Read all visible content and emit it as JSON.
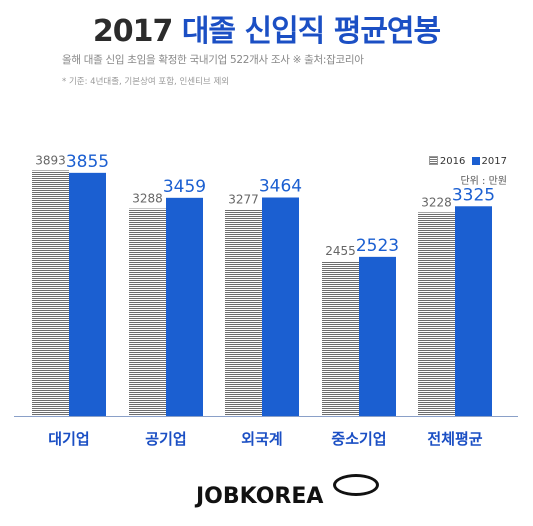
{
  "title": {
    "year": "2017",
    "main": "대졸 신입직 평균연봉"
  },
  "subtitle": "올해 대졸 신입 초임을 확정한 국내기업 522개사 조사  ※ 출처:잡코리아",
  "note": "* 기준: 4년대졸, 기본상여 포함, 인센티브 제외",
  "legend": {
    "label_2016": "2016",
    "label_2017": "2017",
    "unit": "단위 : 만원"
  },
  "logo": "JOBKOREA",
  "colors": {
    "series_2016": "#7a7a7a",
    "series_2017": "#1b5fd1",
    "title_accent": "#1b4fc4",
    "label_2017": "#1b5fd1",
    "label_2016": "#666666"
  },
  "chart_data": {
    "type": "bar",
    "categories": [
      "대기업",
      "공기업",
      "외국계",
      "중소기업",
      "전체평균"
    ],
    "series": [
      {
        "name": "2016",
        "values": [
          3893,
          3288,
          3277,
          2455,
          3228
        ]
      },
      {
        "name": "2017",
        "values": [
          3855,
          3459,
          3464,
          2523,
          3325
        ]
      }
    ],
    "ylim": [
      0,
      3900
    ],
    "grid": false,
    "legend_position": "top-right"
  }
}
